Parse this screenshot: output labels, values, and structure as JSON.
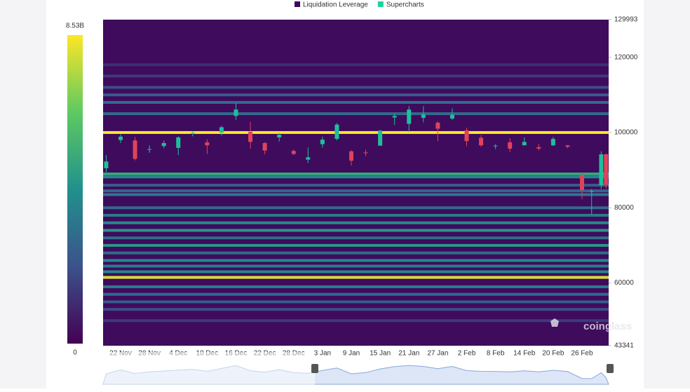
{
  "chart_data": {
    "type": "heatmap",
    "legend": [
      {
        "name": "Liquidation Leverage",
        "color": "#3d0a5a"
      },
      {
        "name": "Supercharts",
        "color": "#21d19f"
      }
    ],
    "watermark": "coinglass",
    "background": "#3f0b5c",
    "ylim": [
      43341,
      129993
    ],
    "yticks": [
      43341,
      60000,
      80000,
      100000,
      120000,
      129993
    ],
    "clim": [
      0,
      8530000000
    ],
    "cticks": [
      0,
      {
        "value": 8530000000,
        "label": "8.53B"
      }
    ],
    "categories": [
      "22 Nov",
      "28 Nov",
      "4 Dec",
      "10 Dec",
      "16 Dec",
      "22 Dec",
      "28 Dec",
      "3 Jan",
      "9 Jan",
      "15 Jan",
      "21 Jan",
      "27 Jan",
      "2 Feb",
      "8 Feb",
      "14 Feb",
      "20 Feb",
      "26 Feb"
    ],
    "bands": {
      "prices": [
        118000,
        115000,
        112000,
        110000,
        108000,
        105000,
        100000,
        89000,
        88200,
        86000,
        84500,
        83500,
        80000,
        78000,
        76000,
        74000,
        72000,
        70000,
        68000,
        66000,
        64500,
        63000,
        61500,
        59000,
        57000,
        55000,
        53000,
        50000
      ],
      "values": [
        1200000000,
        1500000000,
        2000000000,
        2500000000,
        3000000000,
        3000000000,
        8500000000,
        5000000000,
        4000000000,
        2500000000,
        2800000000,
        3500000000,
        3000000000,
        3500000000,
        4000000000,
        4500000000,
        3000000000,
        4500000000,
        3000000000,
        4000000000,
        3500000000,
        4000000000,
        8000000000,
        3500000000,
        3000000000,
        2500000000,
        2000000000,
        1500000000
      ]
    },
    "candles": {
      "up_color": "#1fbf9a",
      "down_color": "#e0435a",
      "x": [
        "19 Nov",
        "22 Nov",
        "25 Nov",
        "28 Nov",
        "1 Dec",
        "4 Dec",
        "7 Dec",
        "10 Dec",
        "13 Dec",
        "16 Dec",
        "19 Dec",
        "22 Dec",
        "25 Dec",
        "28 Dec",
        "31 Dec",
        "3 Jan",
        "6 Jan",
        "9 Jan",
        "12 Jan",
        "15 Jan",
        "18 Jan",
        "21 Jan",
        "24 Jan",
        "27 Jan",
        "30 Jan",
        "2 Feb",
        "5 Feb",
        "8 Feb",
        "11 Feb",
        "14 Feb",
        "17 Feb",
        "20 Feb",
        "23 Feb",
        "26 Feb",
        "28 Feb",
        "2 Mar",
        "3 Mar"
      ],
      "open": [
        90500,
        98000,
        97900,
        95600,
        96400,
        95900,
        99800,
        97400,
        100000,
        104400,
        100200,
        97200,
        98700,
        95100,
        92800,
        96900,
        98300,
        95000,
        94700,
        96500,
        104000,
        102300,
        103900,
        102600,
        103700,
        100600,
        98600,
        96500,
        97400,
        96600,
        96100,
        96600,
        96600,
        88700,
        84300,
        86000,
        94200
      ],
      "high": [
        94000,
        99500,
        98800,
        96600,
        97900,
        99000,
        100400,
        98200,
        101800,
        107800,
        102800,
        97400,
        99900,
        95500,
        96000,
        98900,
        102500,
        95300,
        95400,
        100700,
        105000,
        107000,
        107000,
        103000,
        106400,
        101300,
        99300,
        96900,
        98500,
        98700,
        97000,
        98800,
        96700,
        89300,
        85000,
        95000,
        94400
      ],
      "low": [
        89500,
        97200,
        92600,
        94600,
        95800,
        94000,
        99000,
        94300,
        99200,
        103300,
        95700,
        94200,
        97600,
        94000,
        91900,
        96000,
        97900,
        91200,
        93700,
        96500,
        102000,
        100100,
        102700,
        97700,
        103300,
        96300,
        96200,
        95600,
        94800,
        96600,
        95200,
        96400,
        95800,
        82300,
        78200,
        85000,
        85100
      ],
      "close": [
        92300,
        98900,
        93000,
        95600,
        97200,
        98700,
        99900,
        96600,
        101400,
        106100,
        97500,
        95200,
        99400,
        94300,
        93400,
        98100,
        102100,
        92500,
        94500,
        100500,
        104400,
        106100,
        104800,
        101000,
        104700,
        97700,
        96600,
        96500,
        95700,
        97500,
        95700,
        98300,
        96200,
        84700,
        84400,
        94200,
        86100
      ]
    }
  }
}
